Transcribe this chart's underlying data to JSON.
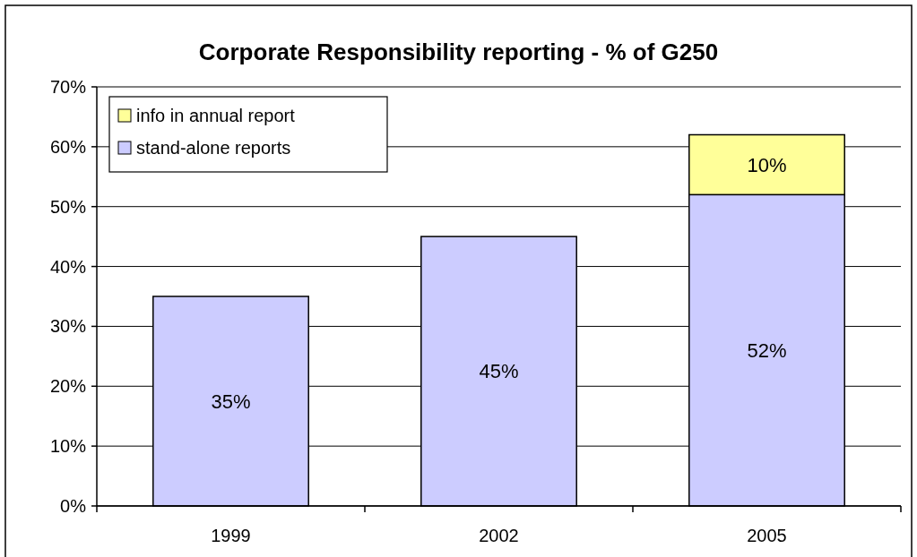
{
  "chart_data": {
    "type": "bar",
    "title": "Corporate Responsibility reporting - % of G250",
    "categories": [
      "1999",
      "2002",
      "2005"
    ],
    "series": [
      {
        "name": "stand-alone reports",
        "color": "#ccccff",
        "values": [
          35,
          45,
          52
        ],
        "value_labels": [
          "35%",
          "45%",
          "52%"
        ]
      },
      {
        "name": "info in annual report",
        "color": "#ffff99",
        "values": [
          null,
          null,
          10
        ],
        "value_labels": [
          null,
          null,
          "10%"
        ]
      }
    ],
    "stacked": true,
    "grid": "y",
    "legend": "top left",
    "ylim": [
      0,
      70
    ],
    "yticks": [
      {
        "value": 0,
        "label": "0%"
      },
      {
        "value": 10,
        "label": "10%"
      },
      {
        "value": 20,
        "label": "20%"
      },
      {
        "value": 30,
        "label": "30%"
      },
      {
        "value": 40,
        "label": "40%"
      },
      {
        "value": 50,
        "label": "50%"
      },
      {
        "value": 60,
        "label": "60%"
      },
      {
        "value": 70,
        "label": "70%"
      }
    ]
  }
}
